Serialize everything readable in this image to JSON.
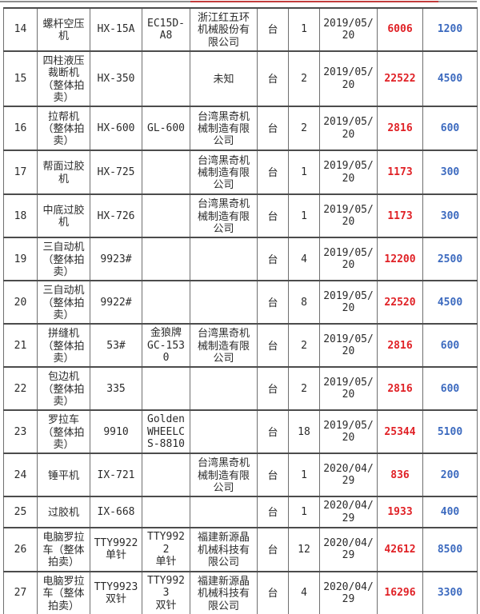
{
  "colors": {
    "deal_price_red": "#e02126",
    "start_price_blue": "#3c6abf",
    "top_line_red": "#c23c3c",
    "table_line": "#4c4c4c"
  },
  "table": {
    "fields": [
      "no",
      "name",
      "model",
      "spec",
      "maker",
      "unit",
      "qty",
      "date",
      "price_red",
      "price_blue"
    ],
    "rows": [
      {
        "no": "14",
        "name": "螺杆空压机",
        "model": "HX-15A",
        "spec": "EC15D-A8",
        "maker": "浙江红五环机械股份有限公司",
        "unit": "台",
        "qty": "1",
        "date": "2019/05/20",
        "price_red": "6006",
        "price_blue": "1200"
      },
      {
        "no": "15",
        "name": "四柱液压裁断机（整体拍卖）",
        "model": "HX-350",
        "spec": "",
        "maker": "未知",
        "unit": "台",
        "qty": "2",
        "date": "2019/05/20",
        "price_red": "22522",
        "price_blue": "4500"
      },
      {
        "no": "16",
        "name": "拉帮机（整体拍卖）",
        "model": "HX-600",
        "spec": "GL-600",
        "maker": "台湾黑奇机械制造有限公司",
        "unit": "台",
        "qty": "2",
        "date": "2019/05/20",
        "price_red": "2816",
        "price_blue": "600"
      },
      {
        "no": "17",
        "name": "帮面过胶机",
        "model": "HX-725",
        "spec": "",
        "maker": "台湾黑奇机械制造有限公司",
        "unit": "台",
        "qty": "1",
        "date": "2019/05/20",
        "price_red": "1173",
        "price_blue": "300"
      },
      {
        "no": "18",
        "name": "中底过胶机",
        "model": "HX-726",
        "spec": "",
        "maker": "台湾黑奇机械制造有限公司",
        "unit": "台",
        "qty": "1",
        "date": "2019/05/20",
        "price_red": "1173",
        "price_blue": "300"
      },
      {
        "no": "19",
        "name": "三自动机（整体拍卖）",
        "model": "9923#",
        "spec": "",
        "maker": "",
        "unit": "台",
        "qty": "4",
        "date": "2019/05/20",
        "price_red": "12200",
        "price_blue": "2500"
      },
      {
        "no": "20",
        "name": "三自动机（整体拍卖）",
        "model": "9922#",
        "spec": "",
        "maker": "",
        "unit": "台",
        "qty": "8",
        "date": "2019/05/20",
        "price_red": "22520",
        "price_blue": "4500"
      },
      {
        "no": "21",
        "name": "拼缝机（整体拍卖）",
        "model": "53#",
        "spec": "金狼牌\nGC-1530",
        "maker": "台湾黑奇机械制造有限公司",
        "unit": "台",
        "qty": "2",
        "date": "2019/05/20",
        "price_red": "2816",
        "price_blue": "600"
      },
      {
        "no": "22",
        "name": "包边机（整体拍卖）",
        "model": "335",
        "spec": "",
        "maker": "",
        "unit": "台",
        "qty": "2",
        "date": "2019/05/20",
        "price_red": "2816",
        "price_blue": "600"
      },
      {
        "no": "23",
        "name": "罗拉车（整体拍卖）",
        "model": "9910",
        "spec": "GoldenWHEELCS-8810",
        "maker": "",
        "unit": "台",
        "qty": "18",
        "date": "2019/05/20",
        "price_red": "25344",
        "price_blue": "5100"
      },
      {
        "no": "24",
        "name": "锤平机",
        "model": "IX-721",
        "spec": "",
        "maker": "台湾黑奇机械制造有限公司",
        "unit": "台",
        "qty": "1",
        "date": "2020/04/29",
        "price_red": "836",
        "price_blue": "200"
      },
      {
        "no": "25",
        "name": "过胶机",
        "model": "IX-668",
        "spec": "",
        "maker": "",
        "unit": "台",
        "qty": "1",
        "date": "2020/04/29",
        "price_red": "1933",
        "price_blue": "400"
      },
      {
        "no": "26",
        "name": "电脑罗拉车（整体拍卖）",
        "model": "TTY9922\n单针",
        "spec": "TTY9922\n单针",
        "maker": "福建新源晶机械科技有限公司",
        "unit": "台",
        "qty": "12",
        "date": "2020/04/29",
        "price_red": "42612",
        "price_blue": "8500"
      },
      {
        "no": "27",
        "name": "电脑罗拉车（整体拍卖）",
        "model": "TTY9923\n双针",
        "spec": "TTY9923\n双针",
        "maker": "福建新源晶机械科技有限公司",
        "unit": "台",
        "qty": "4",
        "date": "2020/04/29",
        "price_red": "16296",
        "price_blue": "3300"
      }
    ]
  }
}
